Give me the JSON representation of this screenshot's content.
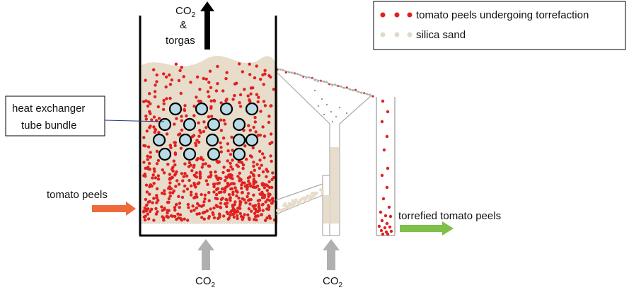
{
  "labels": {
    "co2_top": "CO",
    "co2_top_sub": "2",
    "ampersand": "&",
    "torgas": "torgas",
    "heat_exchanger_line1": "heat exchanger",
    "heat_exchanger_line2": "tube bundle",
    "tomato_peels_in": "tomato peels",
    "torrefied_out": "torrefied tomato peels",
    "co2_bottom_left": "CO",
    "co2_bottom_left_sub": "2",
    "co2_bottom_right": "CO",
    "co2_bottom_right_sub": "2"
  },
  "legend": {
    "item1": "tomato peels undergoing torrefaction",
    "item2": "silica sand"
  },
  "colors": {
    "particle_red": "#e02020",
    "sand": "#e8dccb",
    "tube_fill": "#b9dbe6",
    "arrow_orange": "#ee6a3a",
    "arrow_green": "#7ec04a",
    "arrow_gray": "#b0b0b0",
    "black": "#000000"
  }
}
